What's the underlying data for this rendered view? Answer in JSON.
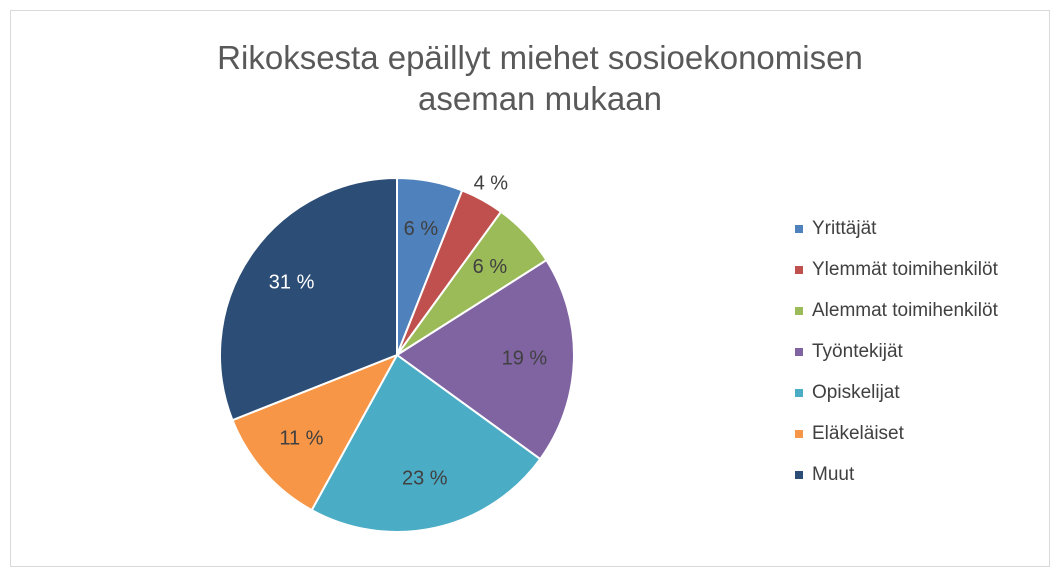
{
  "chart_data": {
    "type": "pie",
    "title": "Rikoksesta epäillyt miehet sosioekonomisen aseman mukaan",
    "categories": [
      "Yrittäjät",
      "Ylemmät toimihenkilöt",
      "Alemmat toimihenkilöt",
      "Työntekijät",
      "Opiskelijat",
      "Eläkeläiset",
      "Muut"
    ],
    "values": [
      6,
      4,
      6,
      19,
      23,
      11,
      31
    ],
    "value_labels": [
      "6 %",
      "4 %",
      "6 %",
      "19 %",
      "23 %",
      "11 %",
      "31 %"
    ],
    "colors": [
      "#4f81bd",
      "#c0504d",
      "#9bbb59",
      "#8064a2",
      "#4bacc6",
      "#f79646",
      "#2c4d75"
    ],
    "legend": "right"
  }
}
